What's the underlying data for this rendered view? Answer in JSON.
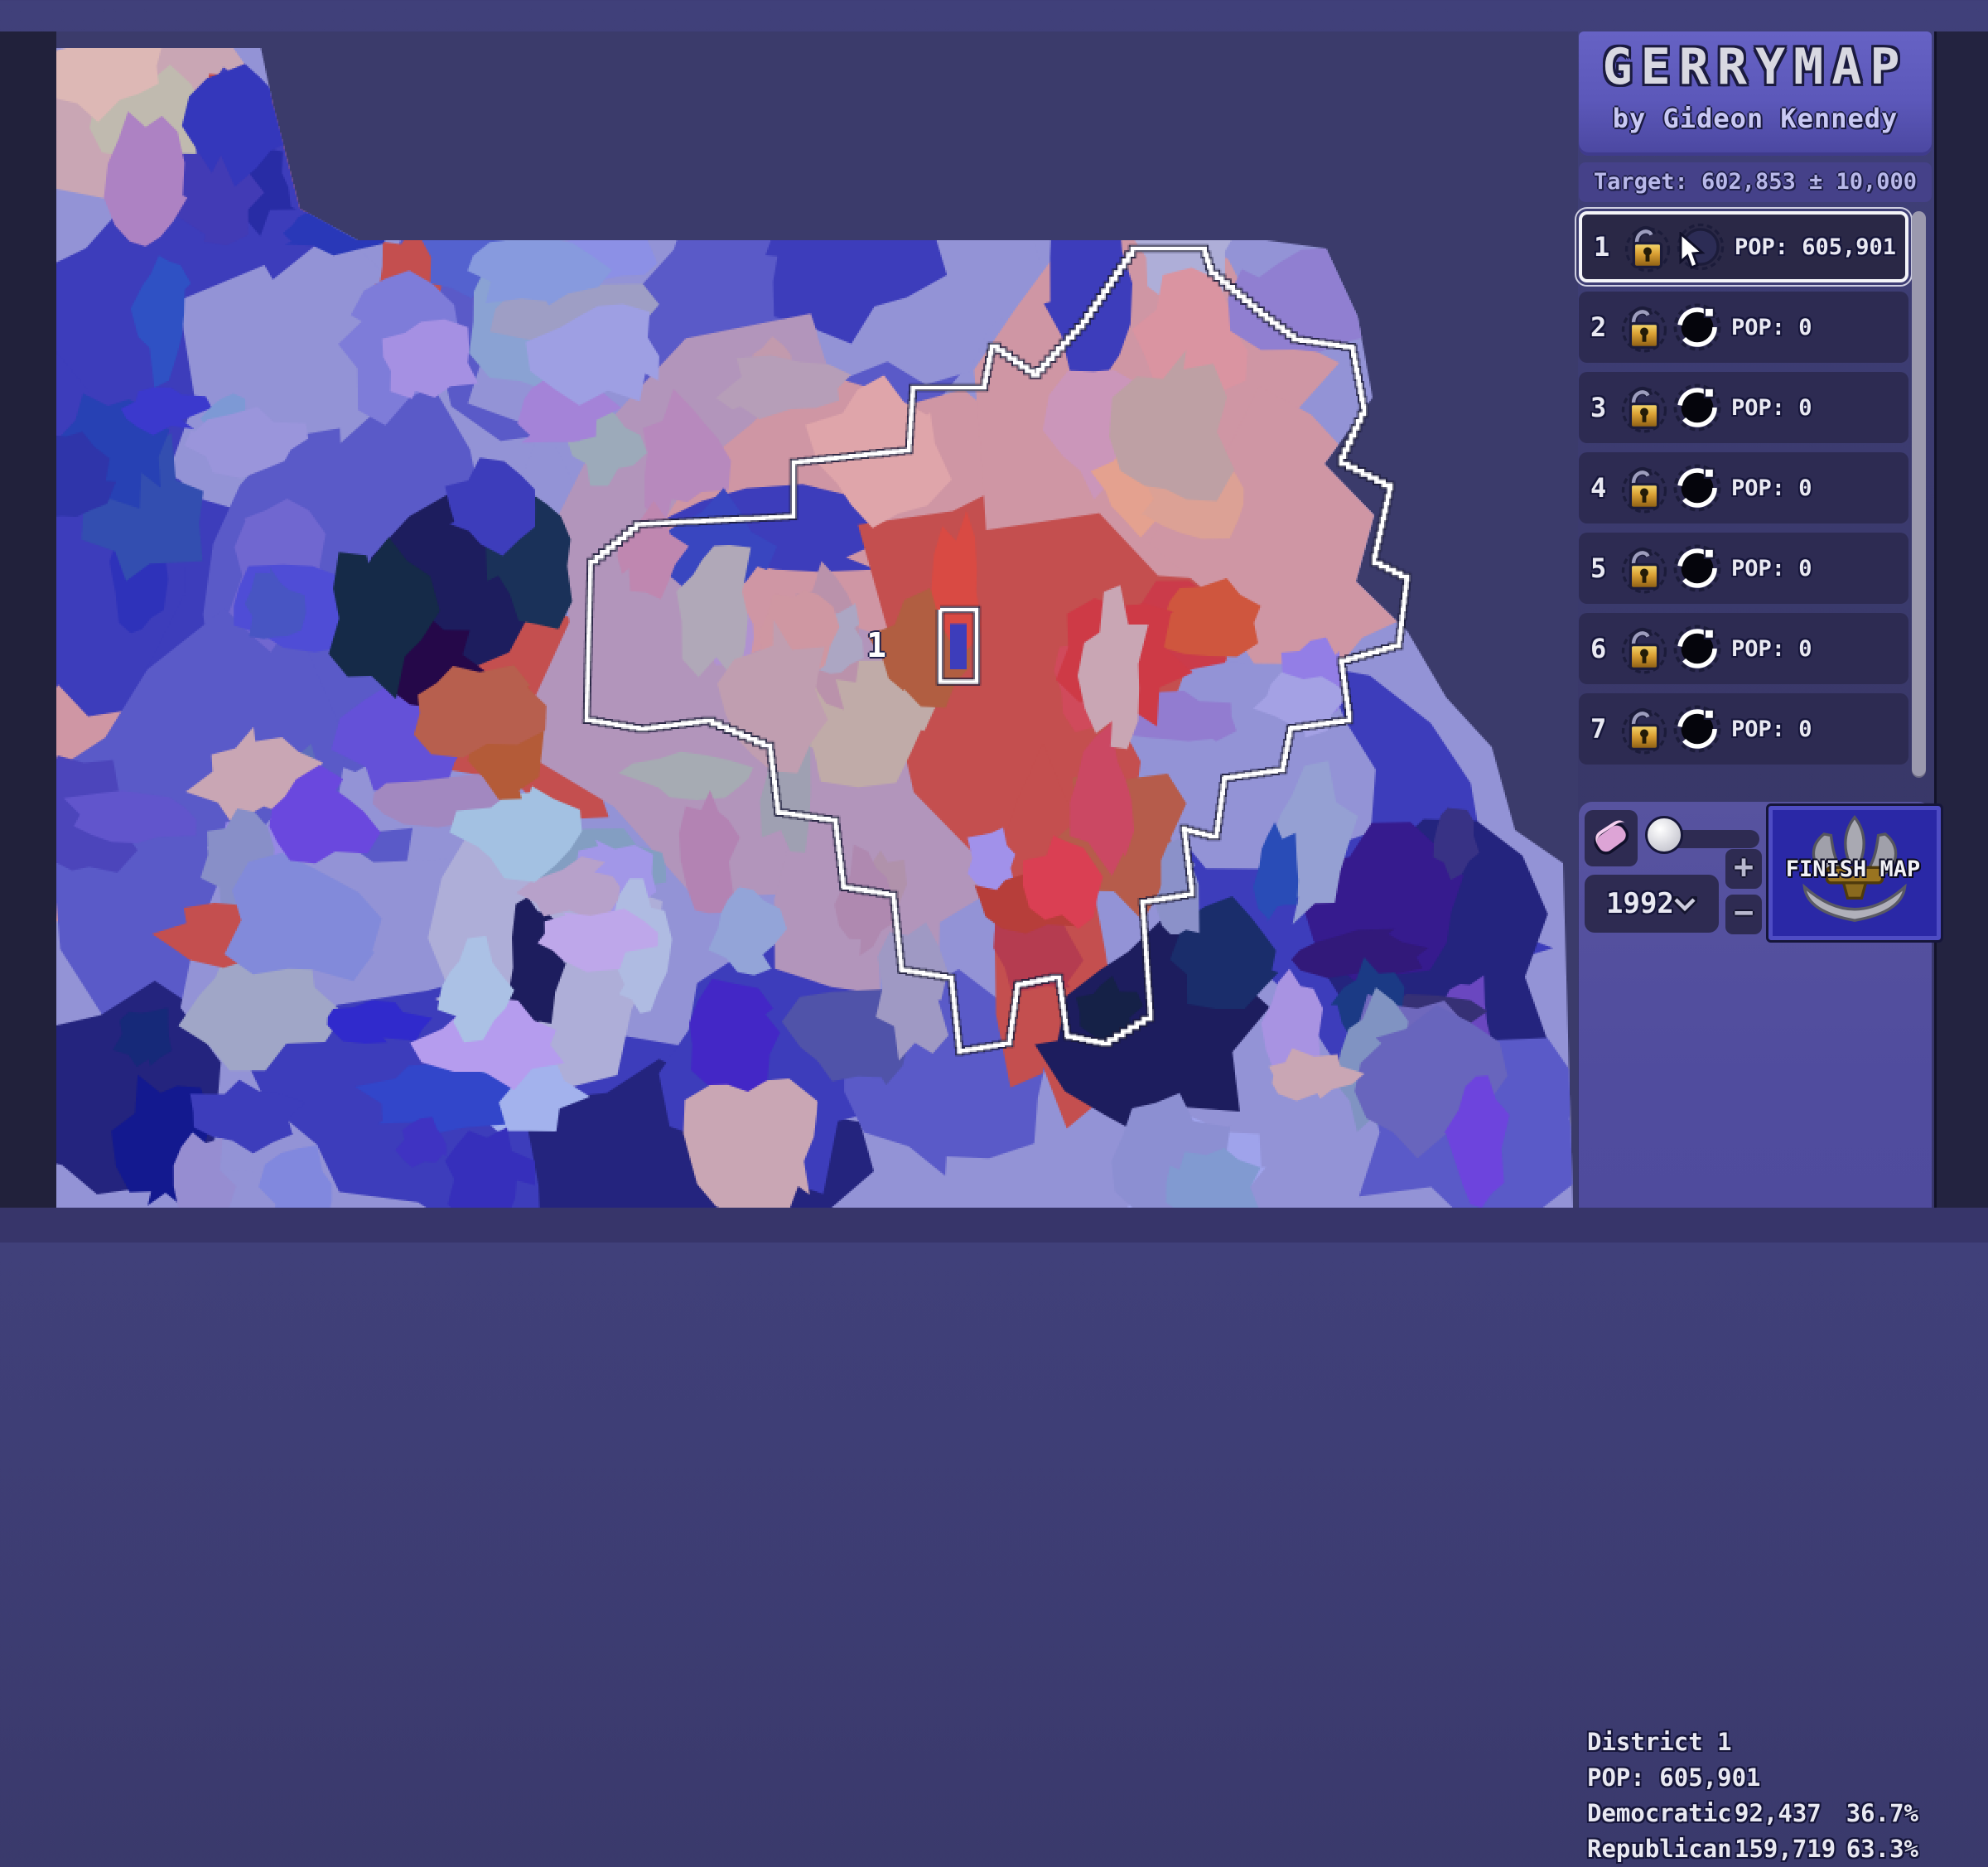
{
  "header": {
    "title": "GERRYMAP",
    "byline": "by Gideon Kennedy",
    "target": "Target: 602,853 ± 10,000"
  },
  "districts": [
    {
      "number": "1",
      "pop": "POP: 605,901",
      "selected": true,
      "locked": false
    },
    {
      "number": "2",
      "pop": "POP: 0",
      "selected": false,
      "locked": false
    },
    {
      "number": "3",
      "pop": "POP: 0",
      "selected": false,
      "locked": false
    },
    {
      "number": "4",
      "pop": "POP: 0",
      "selected": false,
      "locked": false
    },
    {
      "number": "5",
      "pop": "POP: 0",
      "selected": false,
      "locked": false
    },
    {
      "number": "6",
      "pop": "POP: 0",
      "selected": false,
      "locked": false
    },
    {
      "number": "7",
      "pop": "POP: 0",
      "selected": false,
      "locked": false
    }
  ],
  "controls": {
    "year": "1992",
    "plus_label": "+",
    "minus_label": "−",
    "finish_label": "FINISH MAP"
  },
  "info": {
    "district": "District 1",
    "pop": "POP: 605,901",
    "parties": [
      {
        "name": "Democratic",
        "votes": "92,437",
        "pct": "36.7%"
      },
      {
        "name": "Republican",
        "votes": "159,719",
        "pct": "63.3%"
      }
    ]
  },
  "map": {
    "district_label": "1",
    "palette": {
      "bg": "#3b3b6b",
      "royal": "#3d3dbb",
      "blue": "#5a5ac8",
      "periwinkle": "#9393d6",
      "lavender": "#aeaed8",
      "mauve": "#b295bb",
      "pink": "#cf96a4",
      "softpink": "#c9a6b4",
      "red": "#c44f4f",
      "deepred": "#ab3e3e",
      "navy": "#24247e",
      "darknavy": "#1d1d5e",
      "boundary": "#ffffff"
    }
  }
}
